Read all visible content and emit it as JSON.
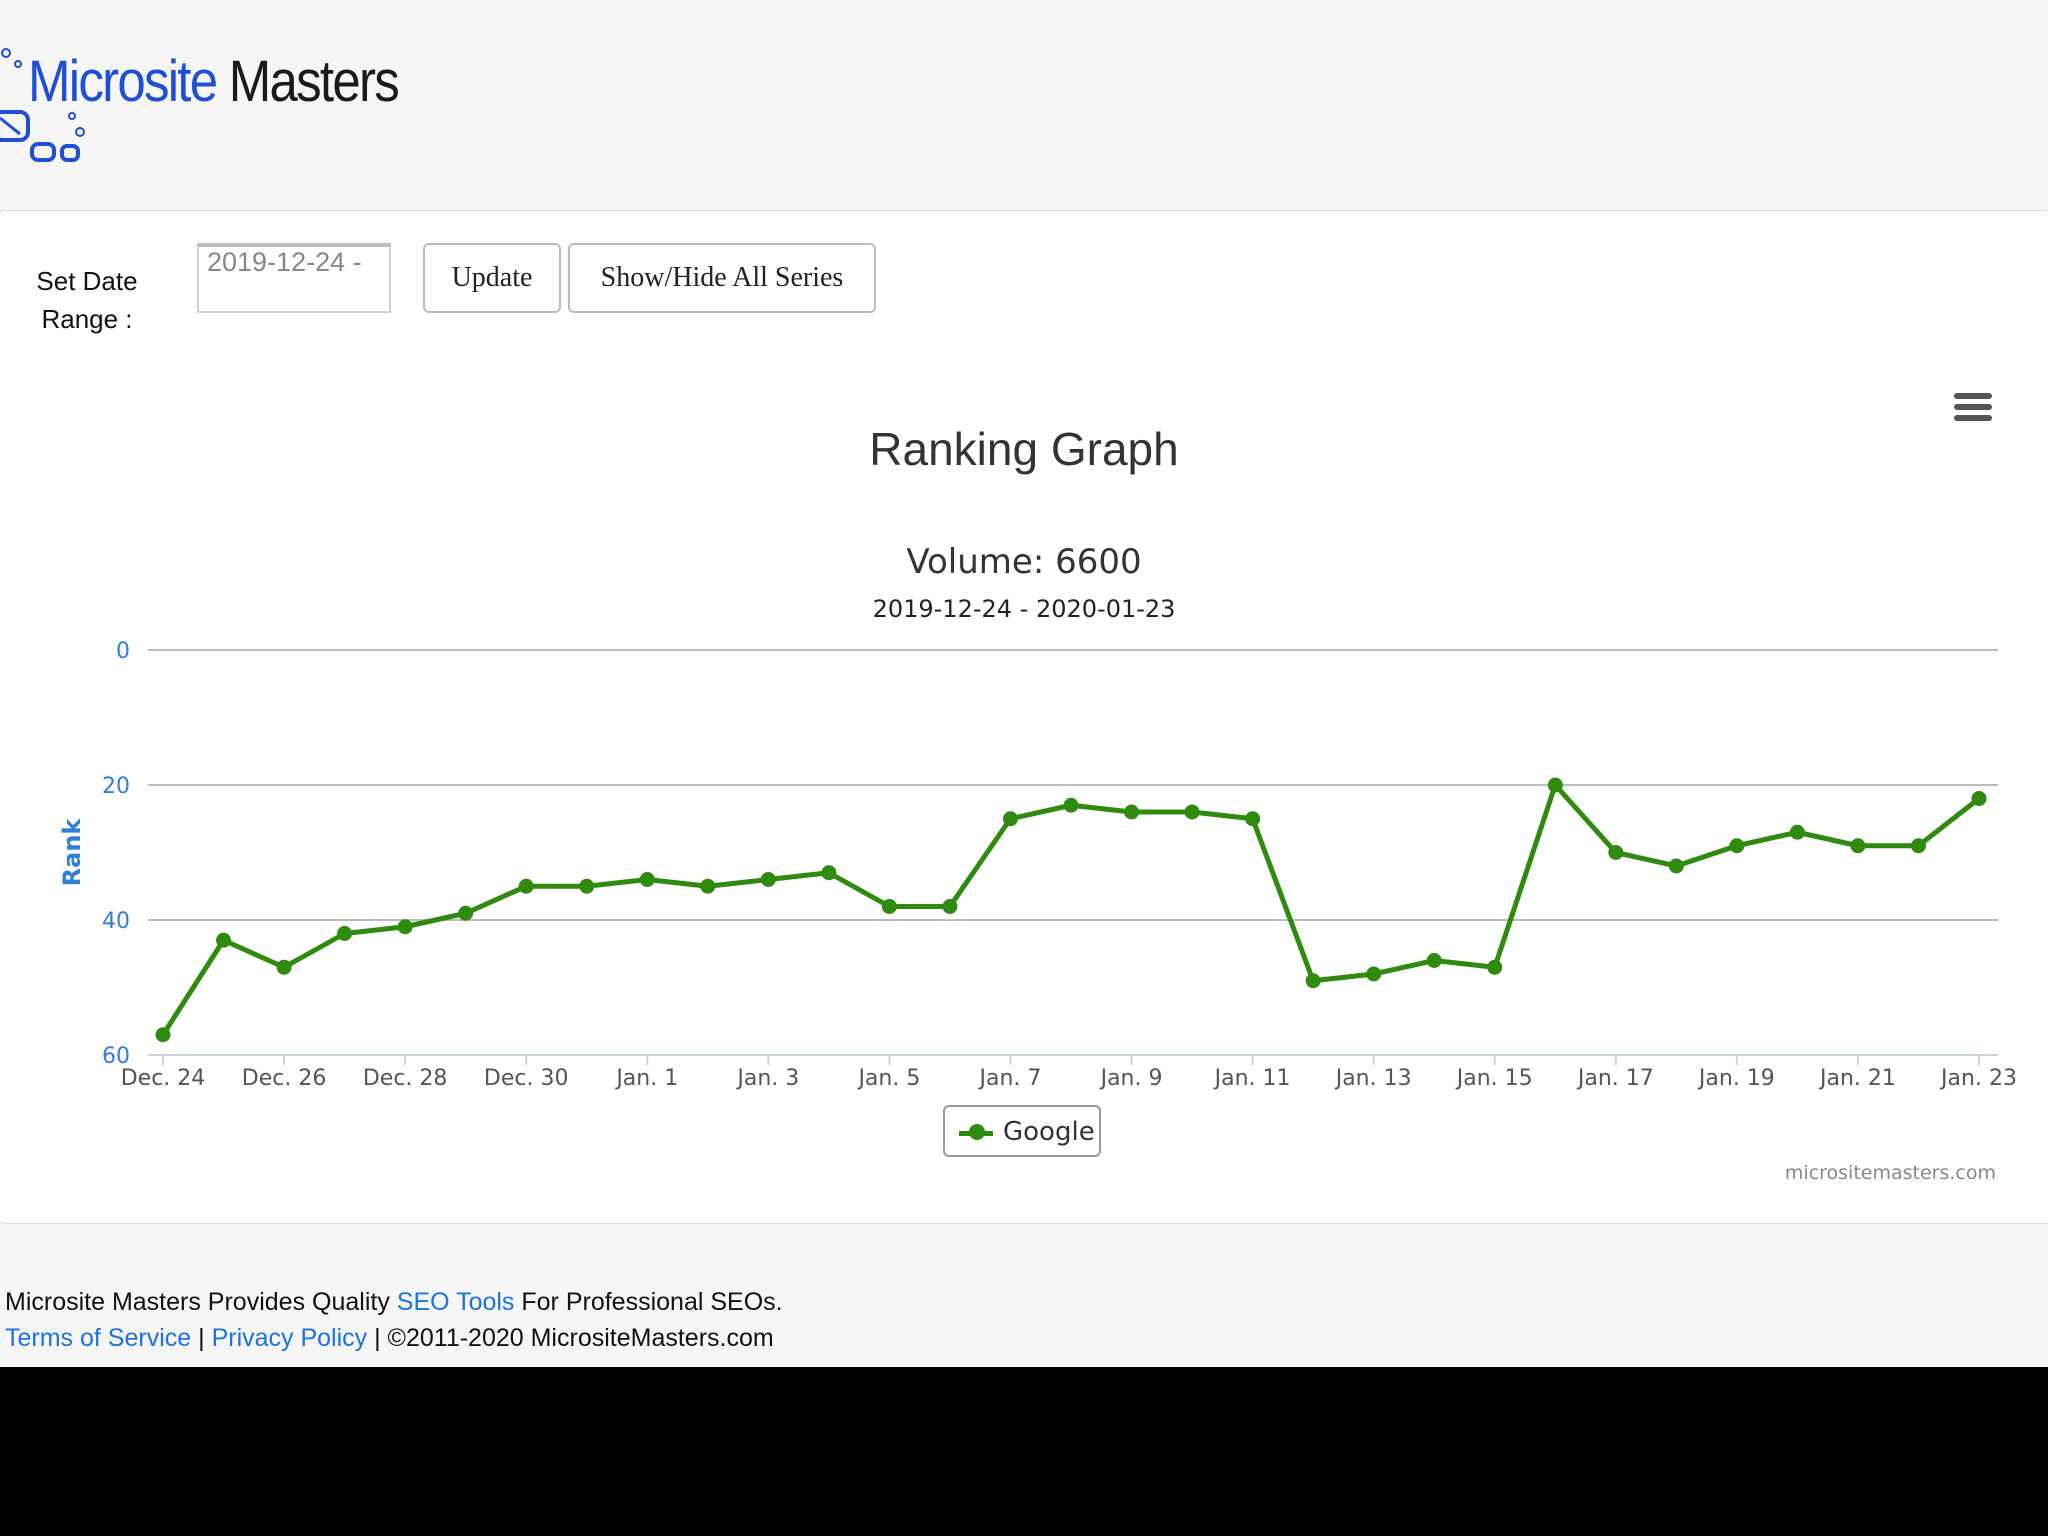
{
  "logo": {
    "part1": "Microsite",
    "part2": "Masters"
  },
  "controls": {
    "set_date_label": "Set Date Range :",
    "date_value": "2019-12-24 -",
    "update_label": "Update",
    "show_hide_label": "Show/Hide All Series"
  },
  "chart_data": {
    "type": "line",
    "title": "Ranking Graph",
    "subtitle": "Volume: 6600",
    "date_range": "2019-12-24 - 2020-01-23",
    "ylabel": "Rank",
    "ylim": [
      0,
      60
    ],
    "y_reversed": true,
    "yticks": [
      0,
      20,
      40,
      60
    ],
    "xtick_labels": [
      "Dec. 24",
      "Dec. 26",
      "Dec. 28",
      "Dec. 30",
      "Jan. 1",
      "Jan. 3",
      "Jan. 5",
      "Jan. 7",
      "Jan. 9",
      "Jan. 11",
      "Jan. 13",
      "Jan. 15",
      "Jan. 17",
      "Jan. 19",
      "Jan. 21",
      "Jan. 23"
    ],
    "grid": true,
    "legend_position": "bottom-center",
    "credit": "micrositemasters.com",
    "series": [
      {
        "name": "Google",
        "color": "#2e8b0e",
        "x": [
          "2019-12-24",
          "2019-12-25",
          "2019-12-26",
          "2019-12-27",
          "2019-12-28",
          "2019-12-29",
          "2019-12-30",
          "2019-12-31",
          "2020-01-01",
          "2020-01-02",
          "2020-01-03",
          "2020-01-04",
          "2020-01-05",
          "2020-01-06",
          "2020-01-07",
          "2020-01-08",
          "2020-01-09",
          "2020-01-10",
          "2020-01-11",
          "2020-01-12",
          "2020-01-13",
          "2020-01-14",
          "2020-01-15",
          "2020-01-16",
          "2020-01-17",
          "2020-01-18",
          "2020-01-19",
          "2020-01-20",
          "2020-01-21",
          "2020-01-22",
          "2020-01-23"
        ],
        "values": [
          57,
          43,
          47,
          42,
          41,
          39,
          35,
          35,
          34,
          35,
          34,
          33,
          38,
          38,
          25,
          23,
          24,
          24,
          25,
          49,
          48,
          46,
          47,
          20,
          30,
          32,
          29,
          27,
          29,
          29,
          22
        ]
      }
    ]
  },
  "footer": {
    "line1_prefix": "Microsite Masters Provides Quality ",
    "line1_link": "SEO Tools",
    "line1_suffix": " For Professional SEOs.",
    "terms": "Terms of Service",
    "sep": " | ",
    "privacy": "Privacy Policy",
    "copyright": " | ©2011-2020 MicrositeMasters.com"
  }
}
